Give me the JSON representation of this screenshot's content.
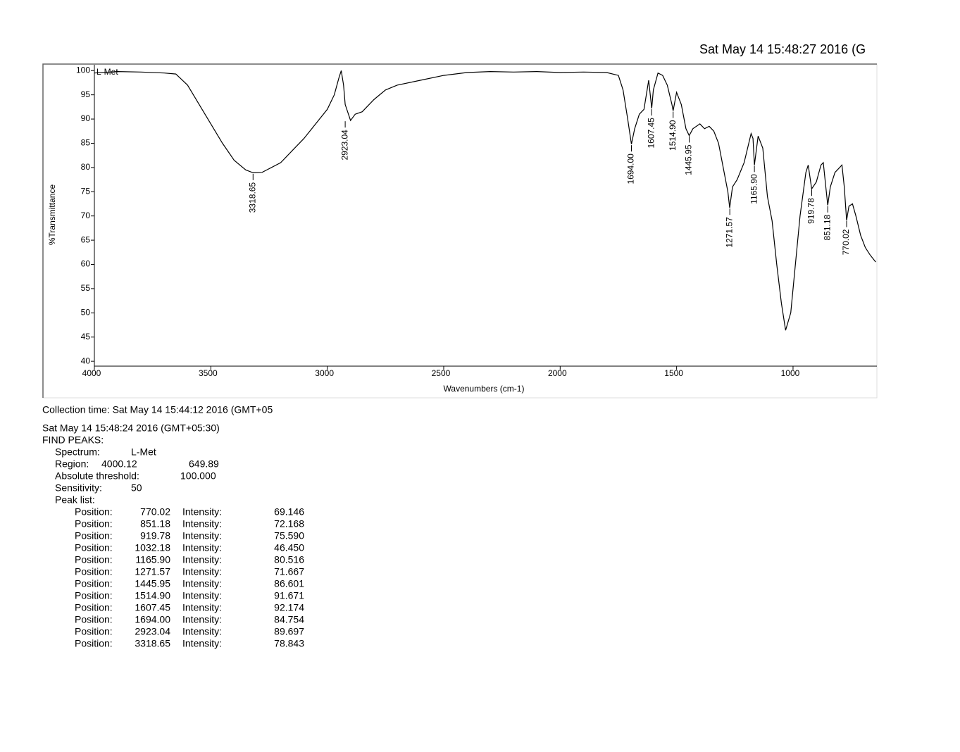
{
  "header": {
    "timestamp": "Sat May 14 15:48:27 2016 (G"
  },
  "chart_data": {
    "type": "line",
    "x_label": "Wavenumbers (cm-1)",
    "y_label": "%Transmittance",
    "xlim": [
      4000,
      640
    ],
    "ylim": [
      39,
      101.2
    ],
    "xticks": [
      4000,
      3500,
      3000,
      2500,
      2000,
      1500,
      1000
    ],
    "yticks": [
      40,
      45,
      50,
      55,
      60,
      65,
      70,
      75,
      80,
      85,
      90,
      95,
      100
    ],
    "x": [
      4000,
      3900,
      3800,
      3700,
      3650,
      3600,
      3550,
      3500,
      3450,
      3400,
      3350,
      3318,
      3280,
      3200,
      3100,
      3000,
      2970,
      2950,
      2940,
      2930,
      2923,
      2900,
      2880,
      2850,
      2800,
      2750,
      2700,
      2600,
      2500,
      2400,
      2300,
      2200,
      2100,
      2000,
      1900,
      1800,
      1750,
      1730,
      1710,
      1694,
      1680,
      1660,
      1640,
      1620,
      1607,
      1600,
      1580,
      1560,
      1540,
      1520,
      1515,
      1500,
      1480,
      1460,
      1446,
      1430,
      1400,
      1380,
      1360,
      1340,
      1320,
      1300,
      1280,
      1272,
      1260,
      1240,
      1210,
      1180,
      1172,
      1166,
      1150,
      1130,
      1110,
      1090,
      1070,
      1050,
      1032,
      1010,
      990,
      970,
      945,
      935,
      920,
      900,
      880,
      870,
      851,
      840,
      820,
      800,
      790,
      780,
      770,
      760,
      745,
      730,
      710,
      690,
      670,
      645
    ],
    "series": [
      {
        "name": "L-Met",
        "color": "#000000",
        "values": [
          99.5,
          99.8,
          99.7,
          99.5,
          99.3,
          97,
          93,
          89,
          85,
          81.5,
          79.5,
          78.9,
          79,
          81,
          86,
          92,
          95,
          98.5,
          100,
          97,
          93,
          89.7,
          91,
          91.5,
          94,
          96,
          97,
          98,
          99,
          99.6,
          99.8,
          99.7,
          99.8,
          99.6,
          99.7,
          99.6,
          99,
          96,
          90,
          84.8,
          88,
          91,
          92,
          98,
          92.2,
          96,
          99.5,
          99,
          97,
          93,
          91.7,
          95.5,
          93,
          88,
          86.6,
          88,
          89,
          88,
          88.5,
          87.5,
          85,
          80,
          75,
          71.7,
          76,
          77.5,
          81,
          87,
          86,
          80.5,
          86.5,
          84,
          74,
          69,
          60,
          52,
          46.4,
          50,
          60,
          70,
          79,
          80.5,
          75.6,
          77,
          80.5,
          81,
          72.2,
          76,
          79,
          80,
          80.5,
          76,
          69.1,
          72,
          72.5,
          70,
          66,
          63.5,
          62,
          60.5
        ]
      }
    ],
    "peaks": {
      "x": [
        3318.65,
        2923.04,
        1694.0,
        1607.45,
        1514.9,
        1445.95,
        1271.57,
        1165.9,
        919.78,
        851.18,
        770.02
      ],
      "values": [
        78.843,
        89.697,
        84.754,
        92.174,
        91.671,
        86.601,
        71.667,
        80.516,
        75.59,
        72.168,
        69.146
      ],
      "labels": [
        "3318.65",
        "2923.04",
        "1694.00",
        "1607.45",
        "1514.90",
        "1445.95",
        "1271.57",
        "1165.90",
        "919.78",
        "851.18",
        "770.02"
      ]
    }
  },
  "report": {
    "collection_time": "Collection time: Sat May 14 15:44:12 2016 (GMT+05",
    "timestamp": "Sat May 14 15:48:24 2016 (GMT+05:30)",
    "title": "FIND PEAKS:",
    "spectrum_label": "Spectrum:",
    "spectrum": "L-Met",
    "region_label": "Region:",
    "region_start": "4000.12",
    "region_end": "649.89",
    "threshold_label": "Absolute threshold:",
    "threshold": "100.000",
    "sensitivity_label": "Sensitivity:",
    "sensitivity": "50",
    "peak_list_label": "Peak list:",
    "peaks": [
      {
        "position_label": "Position:",
        "position": "770.02",
        "intensity_label": "Intensity:",
        "intensity": "69.146"
      },
      {
        "position_label": "Position:",
        "position": "851.18",
        "intensity_label": "Intensity:",
        "intensity": "72.168"
      },
      {
        "position_label": "Position:",
        "position": "919.78",
        "intensity_label": "Intensity:",
        "intensity": "75.590"
      },
      {
        "position_label": "Position:",
        "position": "1032.18",
        "intensity_label": "Intensity:",
        "intensity": "46.450"
      },
      {
        "position_label": "Position:",
        "position": "1165.90",
        "intensity_label": "Intensity:",
        "intensity": "80.516"
      },
      {
        "position_label": "Position:",
        "position": "1271.57",
        "intensity_label": "Intensity:",
        "intensity": "71.667"
      },
      {
        "position_label": "Position:",
        "position": "1445.95",
        "intensity_label": "Intensity:",
        "intensity": "86.601"
      },
      {
        "position_label": "Position:",
        "position": "1514.90",
        "intensity_label": "Intensity:",
        "intensity": "91.671"
      },
      {
        "position_label": "Position:",
        "position": "1607.45",
        "intensity_label": "Intensity:",
        "intensity": "92.174"
      },
      {
        "position_label": "Position:",
        "position": "1694.00",
        "intensity_label": "Intensity:",
        "intensity": "84.754"
      },
      {
        "position_label": "Position:",
        "position": "2923.04",
        "intensity_label": "Intensity:",
        "intensity": "89.697"
      },
      {
        "position_label": "Position:",
        "position": "3318.65",
        "intensity_label": "Intensity:",
        "intensity": "78.843"
      }
    ]
  }
}
